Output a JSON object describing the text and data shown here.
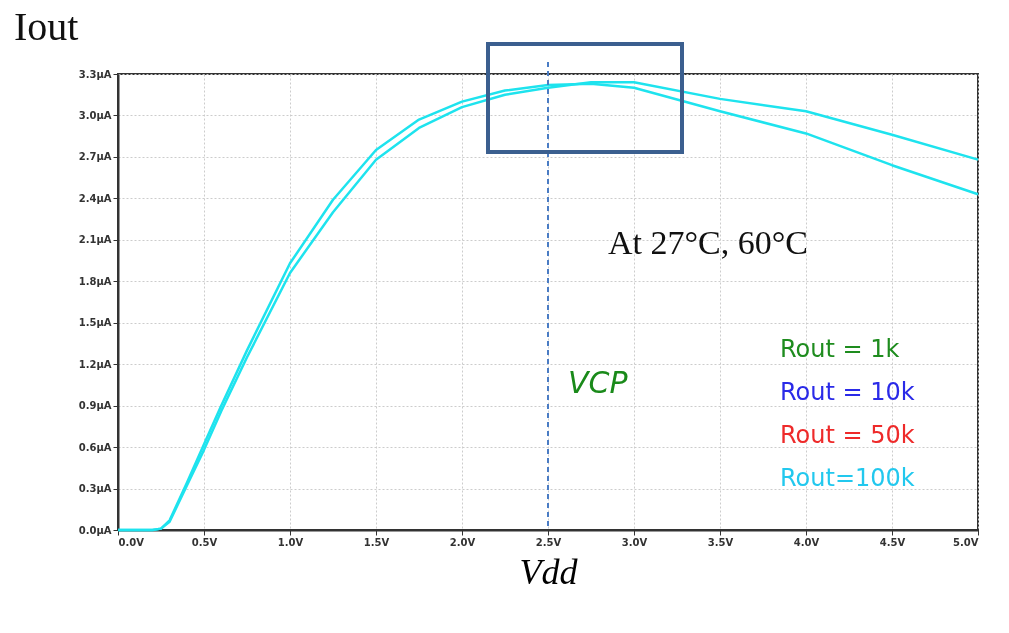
{
  "chart_data": {
    "type": "line",
    "xlabel": "Vdd",
    "ylabel": "Iout",
    "x": [
      0,
      0.2,
      0.25,
      0.3,
      0.4,
      0.5,
      0.6,
      0.75,
      1.0,
      1.25,
      1.5,
      1.75,
      2.0,
      2.25,
      2.5,
      2.75,
      3.0,
      3.5,
      4.0,
      4.5,
      5.0
    ],
    "series": [
      {
        "color": "#1ee3ee",
        "values": [
          0,
          0,
          0.01,
          0.07,
          0.34,
          0.62,
          0.9,
          1.3,
          1.93,
          2.39,
          2.75,
          2.97,
          3.1,
          3.18,
          3.22,
          3.23,
          3.2,
          3.03,
          2.87,
          2.64,
          2.43
        ]
      },
      {
        "color": "#1ee3ee",
        "values": [
          0,
          0,
          0.01,
          0.06,
          0.32,
          0.58,
          0.86,
          1.25,
          1.86,
          2.3,
          2.68,
          2.91,
          3.06,
          3.15,
          3.2,
          3.24,
          3.24,
          3.12,
          3.03,
          2.86,
          2.68
        ]
      }
    ],
    "xlim": [
      0,
      5
    ],
    "ylim": [
      0,
      3.3
    ],
    "xticks": [
      {
        "value": 0,
        "label": "0.0V"
      },
      {
        "value": 0.5,
        "label": "0.5V"
      },
      {
        "value": 1,
        "label": "1.0V"
      },
      {
        "value": 1.5,
        "label": "1.5V"
      },
      {
        "value": 2,
        "label": "2.0V"
      },
      {
        "value": 2.5,
        "label": "2.5V"
      },
      {
        "value": 3,
        "label": "3.0V"
      },
      {
        "value": 3.5,
        "label": "3.5V"
      },
      {
        "value": 4,
        "label": "4.0V"
      },
      {
        "value": 4.5,
        "label": "4.5V"
      },
      {
        "value": 5,
        "label": "5.0V"
      }
    ],
    "yticks": [
      {
        "value": 0,
        "label": "0.0µA"
      },
      {
        "value": 0.3,
        "label": "0.3µA"
      },
      {
        "value": 0.6,
        "label": "0.6µA"
      },
      {
        "value": 0.9,
        "label": "0.9µA"
      },
      {
        "value": 1.2,
        "label": "1.2µA"
      },
      {
        "value": 1.5,
        "label": "1.5µA"
      },
      {
        "value": 1.8,
        "label": "1.8µA"
      },
      {
        "value": 2.1,
        "label": "2.1µA"
      },
      {
        "value": 2.4,
        "label": "2.4µA"
      },
      {
        "value": 2.7,
        "label": "2.7µA"
      },
      {
        "value": 3.0,
        "label": "3.0µA"
      },
      {
        "value": 3.3,
        "label": "3.3µA"
      }
    ],
    "ref_lines": [
      {
        "axis": "x",
        "value": 2.5,
        "label": "VCP",
        "color": "#4a7cc4",
        "line_style": "dashed"
      }
    ],
    "annotations": [
      "At 27°C, 60°C",
      "Rout = 1k",
      "Rout = 10k",
      "Rout = 50k",
      "Rout=100k"
    ],
    "grid": true,
    "marker": "none",
    "line_style": "solid",
    "legend": false
  }
}
